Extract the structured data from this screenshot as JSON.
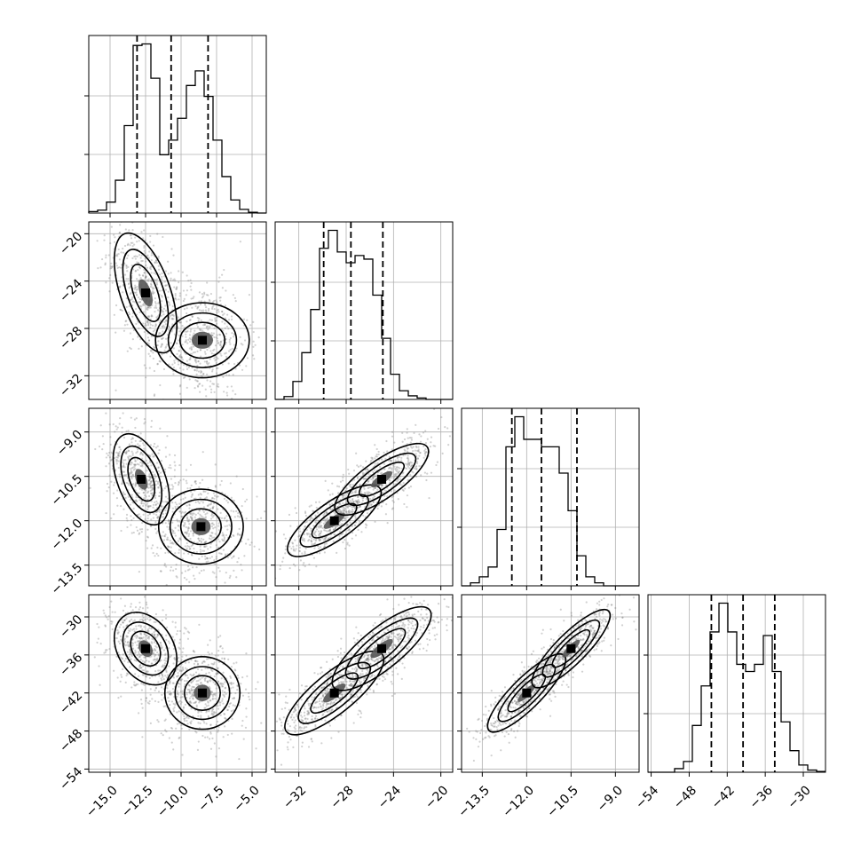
{
  "chart_data": {
    "type": "corner",
    "title": "",
    "parameters": [
      {
        "ticks": [
          "−15.0",
          "−12.5",
          "−10.0",
          "−7.5",
          "−5.0"
        ],
        "tick_values": [
          -15.0,
          -12.5,
          -10.0,
          -7.5,
          -5.0
        ],
        "range": [
          -16.5,
          -4.0
        ]
      },
      {
        "ticks": [
          "−32",
          "−28",
          "−24",
          "−20"
        ],
        "tick_values": [
          -32,
          -28,
          -24,
          -20
        ],
        "range": [
          -34.0,
          -19.0
        ]
      },
      {
        "ticks": [
          "−13.5",
          "−12.0",
          "−10.5",
          "−9.0"
        ],
        "tick_values": [
          -13.5,
          -12.0,
          -10.5,
          -9.0
        ],
        "range": [
          -14.2,
          -8.2
        ]
      },
      {
        "ticks": [
          "−54",
          "−48",
          "−42",
          "−36",
          "−30"
        ],
        "tick_values": [
          -54,
          -48,
          -42,
          -36,
          -30
        ],
        "range": [
          -54.5,
          -26.5
        ]
      }
    ],
    "diagonal_histograms": [
      {
        "edges_start": -16.5,
        "bin_width": 0.625,
        "counts": [
          2,
          4,
          15,
          45,
          120,
          230,
          232,
          185,
          80,
          100,
          130,
          175,
          195,
          160,
          100,
          50,
          18,
          5,
          1,
          0
        ],
        "quantiles": [
          -13.1,
          -10.7,
          -8.1
        ]
      },
      {
        "edges_start": -34.0,
        "bin_width": 0.75,
        "counts": [
          0,
          4,
          25,
          65,
          125,
          210,
          235,
          205,
          190,
          200,
          195,
          145,
          85,
          35,
          12,
          5,
          2,
          0,
          0,
          0
        ],
        "quantiles": [
          -29.9,
          -27.6,
          -24.9
        ]
      },
      {
        "edges_start": -14.2,
        "bin_width": 0.3,
        "counts": [
          0,
          4,
          12,
          25,
          75,
          185,
          225,
          195,
          195,
          185,
          185,
          150,
          100,
          40,
          12,
          4,
          0,
          0,
          0,
          0
        ],
        "quantiles": [
          -12.5,
          -11.5,
          -10.3
        ]
      },
      {
        "edges_start": -54.5,
        "bin_width": 1.4,
        "counts": [
          0,
          0,
          0,
          5,
          15,
          65,
          120,
          195,
          235,
          195,
          150,
          140,
          150,
          190,
          140,
          70,
          30,
          10,
          3,
          1
        ],
        "quantiles": [
          -44.5,
          -39.5,
          -34.5
        ]
      }
    ],
    "pair_panels": [
      {
        "row": 1,
        "col": 0,
        "modes": [
          {
            "x": -12.5,
            "y": -25.0,
            "sx": 1.0,
            "sy": 2.3,
            "rho": -0.55
          },
          {
            "x": -8.5,
            "y": -29.0,
            "sx": 1.2,
            "sy": 1.8,
            "rho": 0.0
          }
        ]
      },
      {
        "row": 2,
        "col": 0,
        "modes": [
          {
            "x": -12.8,
            "y": -10.6,
            "sx": 0.9,
            "sy": 0.7,
            "rho": -0.45
          },
          {
            "x": -8.6,
            "y": -12.2,
            "sx": 1.2,
            "sy": 0.65,
            "rho": 0.0
          }
        ]
      },
      {
        "row": 2,
        "col": 1,
        "modes": [
          {
            "x": -29.0,
            "y": -12.0,
            "sx": 1.8,
            "sy": 0.55,
            "rho": 0.78
          },
          {
            "x": -25.0,
            "y": -10.6,
            "sx": 1.8,
            "sy": 0.55,
            "rho": 0.78
          }
        ]
      },
      {
        "row": 3,
        "col": 0,
        "modes": [
          {
            "x": -12.5,
            "y": -35.0,
            "sx": 1.0,
            "sy": 2.6,
            "rho": -0.3
          },
          {
            "x": -8.5,
            "y": -42.0,
            "sx": 1.2,
            "sy": 2.6,
            "rho": 0.0
          }
        ]
      },
      {
        "row": 3,
        "col": 1,
        "modes": [
          {
            "x": -29.0,
            "y": -42.0,
            "sx": 1.9,
            "sy": 3.0,
            "rho": 0.8
          },
          {
            "x": -25.0,
            "y": -35.0,
            "sx": 1.9,
            "sy": 3.0,
            "rho": 0.8
          }
        ]
      },
      {
        "row": 3,
        "col": 2,
        "modes": [
          {
            "x": -12.0,
            "y": -42.0,
            "sx": 0.6,
            "sy": 2.8,
            "rho": 0.85
          },
          {
            "x": -10.5,
            "y": -35.0,
            "sx": 0.6,
            "sy": 2.8,
            "rho": 0.85
          }
        ]
      }
    ],
    "xlabel": "",
    "ylabel": "",
    "grid": true,
    "legend": "none"
  }
}
